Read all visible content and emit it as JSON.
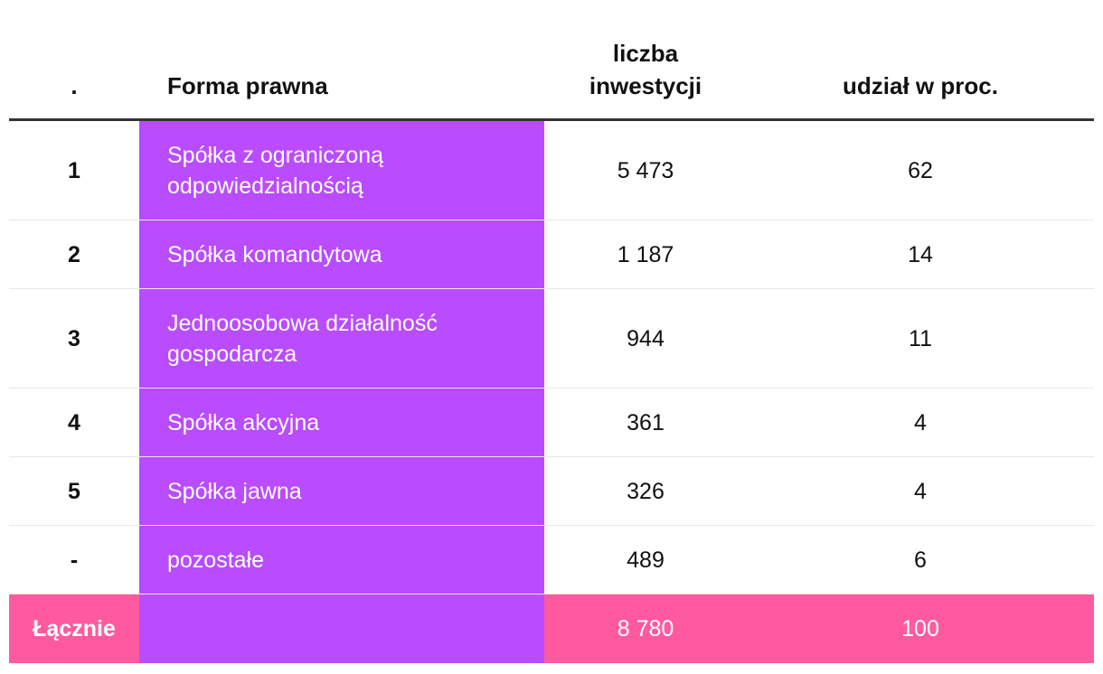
{
  "header": {
    "rank": ".",
    "form": "Forma prawna",
    "count": "liczba\ninwestycji",
    "share": "udział w proc."
  },
  "rows": [
    {
      "rank": "1",
      "form": "Spółka z ograniczoną\nodpowiedzialnością",
      "count": "5 473",
      "share": "62"
    },
    {
      "rank": "2",
      "form": "Spółka komandytowa",
      "count": "1 187",
      "share": "14"
    },
    {
      "rank": "3",
      "form": "Jednoosobowa działalność\ngospodarcza",
      "count": "944",
      "share": "11"
    },
    {
      "rank": "4",
      "form": "Spółka akcyjna",
      "count": "361",
      "share": "4"
    },
    {
      "rank": "5",
      "form": "Spółka jawna",
      "count": "326",
      "share": "4"
    },
    {
      "rank": "-",
      "form": "pozostałe",
      "count": "489",
      "share": "6"
    }
  ],
  "total": {
    "label": "Łącznie",
    "form": "",
    "count": "8 780",
    "share": "100"
  },
  "colors": {
    "highlight_column": "#b94cfe",
    "total_row": "#ff5aa0",
    "header_rule": "#333333"
  }
}
